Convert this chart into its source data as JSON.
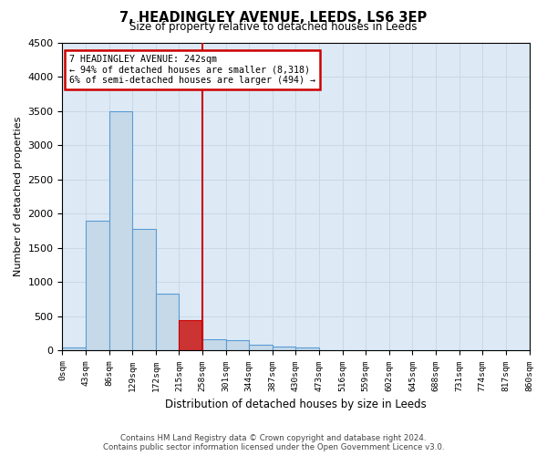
{
  "title": "7, HEADINGLEY AVENUE, LEEDS, LS6 3EP",
  "subtitle": "Size of property relative to detached houses in Leeds",
  "xlabel": "Distribution of detached houses by size in Leeds",
  "ylabel": "Number of detached properties",
  "bin_labels": [
    "0sqm",
    "43sqm",
    "86sqm",
    "129sqm",
    "172sqm",
    "215sqm",
    "258sqm",
    "301sqm",
    "344sqm",
    "387sqm",
    "430sqm",
    "473sqm",
    "516sqm",
    "559sqm",
    "602sqm",
    "645sqm",
    "688sqm",
    "731sqm",
    "774sqm",
    "817sqm",
    "860sqm"
  ],
  "bar_values": [
    50,
    1900,
    3500,
    1780,
    830,
    450,
    160,
    150,
    90,
    65,
    50,
    0,
    0,
    0,
    0,
    0,
    0,
    0,
    0,
    0
  ],
  "bar_color": "#c5d9e8",
  "bar_edge_color": "#5b9bd5",
  "highlight_bar_index": 5,
  "highlight_bar_value": 450,
  "highlight_bar_color": "#cc3333",
  "highlight_bar_edge_color": "#cc0000",
  "property_line_bin": 6.0,
  "annotation_text_line1": "7 HEADINGLEY AVENUE: 242sqm",
  "annotation_text_line2": "← 94% of detached houses are smaller (8,318)",
  "annotation_text_line3": "6% of semi-detached houses are larger (494) →",
  "annotation_box_color": "#ffffff",
  "annotation_box_edge_color": "#cc0000",
  "vline_color": "#cc0000",
  "ylim": [
    0,
    4500
  ],
  "xlim": [
    0,
    20
  ],
  "grid_color": "#c8d8e8",
  "background_color": "#ddeaf5",
  "footer_line1": "Contains HM Land Registry data © Crown copyright and database right 2024.",
  "footer_line2": "Contains public sector information licensed under the Open Government Licence v3.0."
}
